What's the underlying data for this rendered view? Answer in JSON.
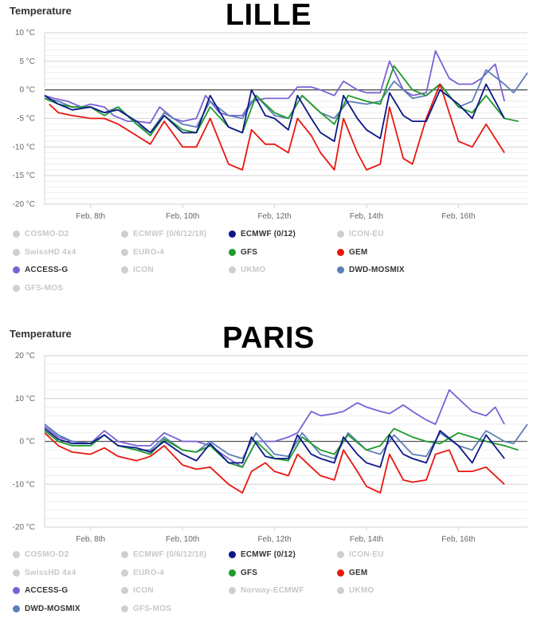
{
  "chart_data": [
    {
      "type": "line",
      "title": "LILLE",
      "ylabel": "Temperature",
      "ylim": [
        -20,
        10
      ],
      "yticks": [
        10,
        5,
        0,
        -5,
        -10,
        -15,
        -20
      ],
      "ytick_labels": [
        "10 °C",
        "5 °C",
        "0 °C",
        "-5 °C",
        "-10 °C",
        "-15 °C",
        "-20 °C"
      ],
      "xlim": [
        7.0,
        17.5
      ],
      "xticks": [
        8,
        10,
        12,
        14,
        16
      ],
      "xtick_labels": [
        "Feb, 8th",
        "Feb, 10th",
        "Feb, 12th",
        "Feb, 14th",
        "Feb, 16th"
      ],
      "legend": [
        {
          "name": "COSMO-D2",
          "visible": false
        },
        {
          "name": "ECMWF (0/6/12/18)",
          "visible": false
        },
        {
          "name": "ECMWF (0/12)",
          "visible": true
        },
        {
          "name": "ICON-EU",
          "visible": false
        },
        {
          "name": "SwissHD 4x4",
          "visible": false
        },
        {
          "name": "EURO-4",
          "visible": false
        },
        {
          "name": "GFS",
          "visible": true
        },
        {
          "name": "GEM",
          "visible": true
        },
        {
          "name": "ACCESS-G",
          "visible": true
        },
        {
          "name": "ICON",
          "visible": false
        },
        {
          "name": "UKMO",
          "visible": false
        },
        {
          "name": "DWD-MOSMIX",
          "visible": true
        },
        {
          "name": "GFS-MOS",
          "visible": false
        }
      ],
      "series": [
        {
          "name": "ACCESS-G",
          "color": "#7b61d6",
          "x": [
            7.0,
            7.2,
            7.5,
            7.8,
            8.0,
            8.3,
            8.5,
            8.8,
            9.0,
            9.3,
            9.5,
            9.8,
            10.0,
            10.3,
            10.5,
            10.8,
            11.0,
            11.3,
            11.5,
            11.8,
            12.0,
            12.3,
            12.5,
            12.8,
            13.0,
            13.3,
            13.5,
            13.8,
            14.0,
            14.3,
            14.5,
            14.8,
            15.0,
            15.3,
            15.5,
            15.8,
            16.0,
            16.3,
            16.5,
            16.8,
            17.0
          ],
          "y": [
            -1,
            -1.5,
            -2,
            -3,
            -2.5,
            -3,
            -4.5,
            -5.5,
            -5.5,
            -5.8,
            -3,
            -5,
            -5.5,
            -5,
            -1,
            -4,
            -4.5,
            -4.5,
            -2,
            -1.5,
            -1.5,
            -1.5,
            0.5,
            0.5,
            0,
            -1,
            1.5,
            0,
            -0.5,
            -0.5,
            5,
            0,
            -1,
            -0.5,
            6.8,
            2,
            1,
            1,
            2,
            4.5,
            -2
          ]
        },
        {
          "name": "DWD-MOSMIX",
          "color": "#5d7fb8",
          "x": [
            7.0,
            7.3,
            7.6,
            8.0,
            8.3,
            8.6,
            9.0,
            9.3,
            9.6,
            10.0,
            10.3,
            10.6,
            11.0,
            11.3,
            11.6,
            12.0,
            12.3,
            12.6,
            13.0,
            13.3,
            13.6,
            14.0,
            14.3,
            14.6,
            15.0,
            15.3,
            15.6,
            16.0,
            16.3,
            16.6,
            17.0,
            17.2,
            17.5
          ],
          "y": [
            -1.5,
            -2,
            -3,
            -3,
            -4,
            -3,
            -6,
            -7.5,
            -4,
            -6,
            -6.5,
            -2,
            -4.5,
            -5,
            -1,
            -4.5,
            -5,
            -1,
            -4,
            -5,
            -2,
            -2.5,
            -2,
            1.5,
            -1.5,
            -1,
            1,
            -3,
            -2,
            3.5,
            1,
            -0.5,
            3
          ]
        },
        {
          "name": "GFS",
          "color": "#1e9a2a",
          "x": [
            7.0,
            7.3,
            7.6,
            8.0,
            8.3,
            8.6,
            9.0,
            9.3,
            9.6,
            10.0,
            10.3,
            10.6,
            11.0,
            11.3,
            11.6,
            12.0,
            12.3,
            12.6,
            13.0,
            13.3,
            13.6,
            14.0,
            14.3,
            14.6,
            15.0,
            15.3,
            15.6,
            16.0,
            16.3,
            16.6,
            17.0,
            17.3
          ],
          "y": [
            -1.5,
            -2.5,
            -3,
            -3,
            -4.5,
            -3,
            -6,
            -8,
            -4.5,
            -7,
            -7.5,
            -3,
            -6.5,
            -7.5,
            -1,
            -4,
            -5,
            -1,
            -4,
            -6,
            -1,
            -2,
            -2.5,
            4.2,
            0,
            -1,
            1,
            -3,
            -4,
            -1,
            -5,
            -5.5
          ]
        },
        {
          "name": "GEM",
          "color": "#e8170f",
          "x": [
            7.1,
            7.3,
            7.6,
            8.0,
            8.3,
            8.6,
            9.0,
            9.3,
            9.6,
            10.0,
            10.3,
            10.6,
            11.0,
            11.3,
            11.5,
            11.8,
            12.0,
            12.3,
            12.5,
            12.8,
            13.0,
            13.3,
            13.5,
            13.8,
            14.0,
            14.3,
            14.5,
            14.8,
            15.0,
            15.3,
            15.6,
            16.0,
            16.3,
            16.6,
            17.0
          ],
          "y": [
            -2.5,
            -4,
            -4.5,
            -5,
            -5,
            -6,
            -8,
            -9.5,
            -5.5,
            -10,
            -10,
            -5,
            -13,
            -14,
            -7,
            -9.5,
            -9.5,
            -11,
            -5,
            -8,
            -11,
            -14,
            -5,
            -11,
            -14,
            -13,
            -3,
            -12,
            -13,
            -5,
            1,
            -9,
            -10,
            -6,
            -11
          ]
        },
        {
          "name": "ECMWF (0/12)",
          "color": "#0c1788",
          "x": [
            7.0,
            7.3,
            7.6,
            8.0,
            8.3,
            8.6,
            9.0,
            9.3,
            9.6,
            10.0,
            10.3,
            10.6,
            11.0,
            11.3,
            11.5,
            11.8,
            12.0,
            12.3,
            12.5,
            12.8,
            13.0,
            13.3,
            13.5,
            13.8,
            14.0,
            14.3,
            14.5,
            14.8,
            15.0,
            15.3,
            15.6,
            16.0,
            16.3,
            16.6,
            17.0
          ],
          "y": [
            -1,
            -2.5,
            -3.5,
            -3,
            -4,
            -3.5,
            -5.5,
            -7.5,
            -4.5,
            -7.5,
            -7.5,
            -1,
            -6.5,
            -7.5,
            0,
            -4.5,
            -5,
            -7,
            -1,
            -5,
            -7.5,
            -9,
            -1,
            -5,
            -7,
            -8.5,
            -0.5,
            -4.5,
            -5.5,
            -5.5,
            0,
            -2.5,
            -5,
            1,
            -5
          ]
        }
      ]
    },
    {
      "type": "line",
      "title": "PARIS",
      "ylabel": "Temperature",
      "ylim": [
        -20,
        20
      ],
      "yticks": [
        20,
        10,
        0,
        -10,
        -20
      ],
      "ytick_labels": [
        "20 °C",
        "10 °C",
        "0 °C",
        "-10 °C",
        "-20 °C"
      ],
      "xlim": [
        7.0,
        17.5
      ],
      "xticks": [
        8,
        10,
        12,
        14,
        16
      ],
      "xtick_labels": [
        "Feb, 8th",
        "Feb, 10th",
        "Feb, 12th",
        "Feb, 14th",
        "Feb, 16th"
      ],
      "legend": [
        {
          "name": "COSMO-D2",
          "visible": false
        },
        {
          "name": "ECMWF (0/6/12/18)",
          "visible": false
        },
        {
          "name": "ECMWF (0/12)",
          "visible": true
        },
        {
          "name": "ICON-EU",
          "visible": false
        },
        {
          "name": "SwissHD 4x4",
          "visible": false
        },
        {
          "name": "EURO-4",
          "visible": false
        },
        {
          "name": "GFS",
          "visible": true
        },
        {
          "name": "GEM",
          "visible": true
        },
        {
          "name": "ACCESS-G",
          "visible": true
        },
        {
          "name": "ICON",
          "visible": false
        },
        {
          "name": "Norway-ECMWF",
          "visible": false
        },
        {
          "name": "UKMO",
          "visible": false
        },
        {
          "name": "DWD-MOSMIX",
          "visible": true
        },
        {
          "name": "GFS-MOS",
          "visible": false
        }
      ],
      "series": [
        {
          "name": "ACCESS-G",
          "color": "#7b61d6",
          "x": [
            7.0,
            7.3,
            7.6,
            8.0,
            8.3,
            8.6,
            9.0,
            9.3,
            9.6,
            10.0,
            10.3,
            10.6,
            11.0,
            11.3,
            11.6,
            12.0,
            12.3,
            12.5,
            12.8,
            13.0,
            13.3,
            13.5,
            13.8,
            14.0,
            14.3,
            14.5,
            14.8,
            15.0,
            15.3,
            15.5,
            15.8,
            16.0,
            16.3,
            16.6,
            16.8,
            17.0
          ],
          "y": [
            3.5,
            1,
            0,
            -0.5,
            2.5,
            0,
            -1,
            -1,
            2,
            0,
            0,
            -1,
            -4,
            -6,
            0,
            0,
            1,
            2,
            7,
            6,
            6.5,
            7,
            9,
            8,
            7,
            6.5,
            8.5,
            7,
            5,
            4,
            12,
            10,
            7,
            6,
            8,
            4
          ]
        },
        {
          "name": "DWD-MOSMIX",
          "color": "#5d7fb8",
          "x": [
            7.0,
            7.3,
            7.6,
            8.0,
            8.3,
            8.6,
            9.0,
            9.3,
            9.6,
            10.0,
            10.3,
            10.6,
            11.0,
            11.3,
            11.6,
            12.0,
            12.3,
            12.6,
            13.0,
            13.3,
            13.6,
            14.0,
            14.3,
            14.6,
            15.0,
            15.3,
            15.6,
            16.0,
            16.3,
            16.6,
            17.0,
            17.2,
            17.5
          ],
          "y": [
            4,
            1.5,
            0,
            -0.5,
            1.5,
            -1,
            -2,
            -2,
            1,
            -2,
            -2.5,
            0,
            -3,
            -4,
            2,
            -3,
            -3.5,
            2,
            -3,
            -4,
            2,
            -2,
            -3,
            1.5,
            -3,
            -3.5,
            2,
            -1,
            -2,
            2.5,
            0,
            -0.5,
            4
          ]
        },
        {
          "name": "GFS",
          "color": "#1e9a2a",
          "x": [
            7.0,
            7.3,
            7.6,
            8.0,
            8.3,
            8.6,
            9.0,
            9.3,
            9.6,
            10.0,
            10.3,
            10.6,
            11.0,
            11.3,
            11.6,
            12.0,
            12.3,
            12.6,
            13.0,
            13.3,
            13.6,
            14.0,
            14.3,
            14.6,
            15.0,
            15.3,
            15.6,
            16.0,
            16.3,
            16.6,
            17.0,
            17.3
          ],
          "y": [
            2.5,
            0,
            -1,
            -1,
            1.5,
            -1,
            -2,
            -3,
            0.5,
            -2,
            -2.5,
            -1,
            -5,
            -6,
            0,
            -4,
            -4.5,
            1,
            -2,
            -3,
            1.5,
            -2,
            -1,
            3,
            1,
            0,
            -0.5,
            2,
            1,
            0,
            -1,
            -2
          ]
        },
        {
          "name": "GEM",
          "color": "#e8170f",
          "x": [
            7.0,
            7.3,
            7.6,
            8.0,
            8.3,
            8.6,
            9.0,
            9.3,
            9.6,
            10.0,
            10.3,
            10.6,
            11.0,
            11.3,
            11.5,
            11.8,
            12.0,
            12.3,
            12.5,
            12.8,
            13.0,
            13.3,
            13.5,
            13.8,
            14.0,
            14.3,
            14.5,
            14.8,
            15.0,
            15.3,
            15.5,
            15.8,
            16.0,
            16.3,
            16.6,
            17.0
          ],
          "y": [
            2,
            -1,
            -2.5,
            -3,
            -1.5,
            -3.5,
            -4.5,
            -3.5,
            -1,
            -5.5,
            -6.5,
            -6,
            -10,
            -12,
            -7,
            -5,
            -7,
            -8,
            -3,
            -6,
            -8,
            -9,
            -2,
            -7,
            -10.5,
            -12,
            -3,
            -9,
            -9.5,
            -9,
            -3,
            -2,
            -7,
            -7,
            -6,
            -10
          ]
        },
        {
          "name": "ECMWF (0/12)",
          "color": "#0c1788",
          "x": [
            7.0,
            7.3,
            7.6,
            8.0,
            8.3,
            8.6,
            9.0,
            9.3,
            9.6,
            10.0,
            10.3,
            10.6,
            11.0,
            11.3,
            11.5,
            11.8,
            12.0,
            12.3,
            12.5,
            12.8,
            13.0,
            13.3,
            13.5,
            13.8,
            14.0,
            14.3,
            14.5,
            14.8,
            15.0,
            15.3,
            15.6,
            16.0,
            16.3,
            16.6,
            17.0
          ],
          "y": [
            3,
            0.5,
            -0.5,
            -0.5,
            1.5,
            -1,
            -1.5,
            -2.5,
            0,
            -3,
            -4.5,
            -0.5,
            -5,
            -5,
            1,
            -3.5,
            -4,
            -4,
            1.5,
            -3,
            -4,
            -5,
            1,
            -3,
            -5,
            -6,
            1.5,
            -3,
            -4,
            -5,
            2.5,
            -1,
            -5,
            1.5,
            -4
          ]
        }
      ]
    }
  ]
}
